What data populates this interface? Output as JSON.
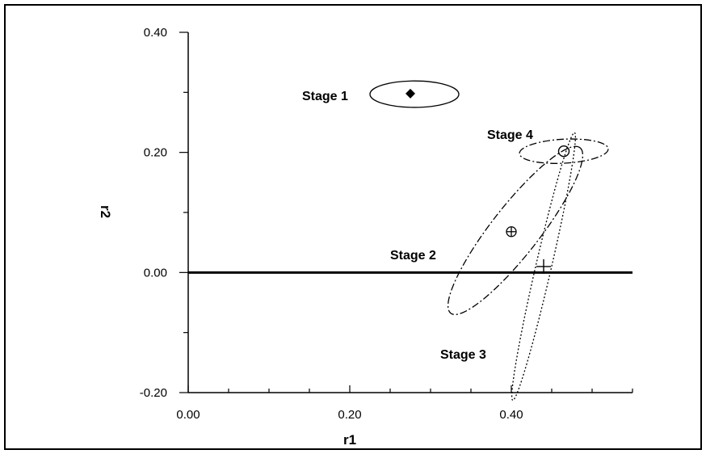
{
  "chart_data": {
    "type": "scatter",
    "title": "",
    "xlabel": "r1",
    "ylabel": "r2",
    "xlim": [
      0.0,
      0.55
    ],
    "ylim": [
      -0.2,
      0.4
    ],
    "x_ticks": [
      "0.00",
      "0.20",
      "0.40"
    ],
    "x_tick_values": [
      0.0,
      0.2,
      0.4
    ],
    "y_ticks": [
      "0.40",
      "0.20",
      "0.00",
      "-0.20"
    ],
    "y_tick_values": [
      0.4,
      0.2,
      0.0,
      -0.2
    ],
    "grid": false,
    "reference_line": {
      "y": 0.0
    },
    "series": [
      {
        "name": "Stage 1",
        "marker": "filled-diamond",
        "line_style": "solid",
        "x": 0.275,
        "y": 0.298,
        "ellipse": {
          "cx": 0.28,
          "cy": 0.297,
          "rx": 0.055,
          "ry": 0.022,
          "angle_deg": 0
        }
      },
      {
        "name": "Stage 2",
        "marker": "circle-plus",
        "line_style": "dash-dot",
        "x": 0.4,
        "y": 0.068,
        "ellipse": {
          "cx": 0.405,
          "cy": 0.07,
          "rx": 0.13,
          "ry": 0.04,
          "angle_deg": 52
        }
      },
      {
        "name": "Stage 3",
        "marker": "plus",
        "line_style": "dotted",
        "x": 0.44,
        "y": 0.01,
        "ellipse": {
          "cx": 0.44,
          "cy": 0.01,
          "rx": 0.17,
          "ry": 0.013,
          "angle_deg": 77
        }
      },
      {
        "name": "Stage 4",
        "marker": "open-circle",
        "line_style": "dash-dot",
        "x": 0.465,
        "y": 0.202,
        "ellipse": {
          "cx": 0.465,
          "cy": 0.202,
          "rx": 0.055,
          "ry": 0.02,
          "angle_deg": 3
        }
      }
    ]
  }
}
